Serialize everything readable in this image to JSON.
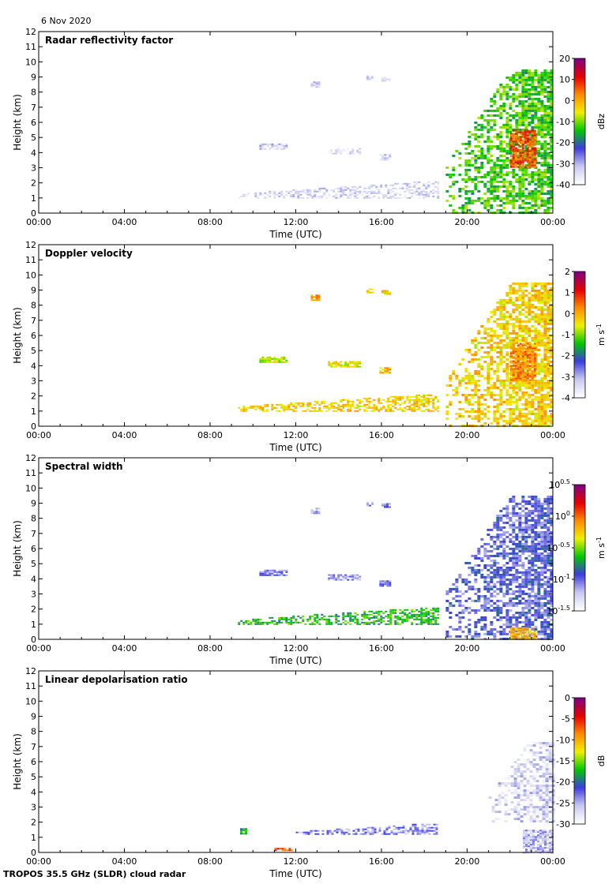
{
  "figure": {
    "date": "6 Nov 2020",
    "footer": "TROPOS 35.5 GHz (SLDR) cloud radar"
  },
  "chart_data": [
    {
      "type": "heatmap",
      "title": "Radar reflectivity factor",
      "xlabel": "Time (UTC)",
      "ylabel": "Height (km)",
      "xlim": [
        0,
        24
      ],
      "ylim": [
        0,
        12
      ],
      "xticks": [
        "00:00",
        "04:00",
        "08:00",
        "12:00",
        "16:00",
        "20:00",
        "00:00"
      ],
      "yticks": [
        0,
        1,
        2,
        3,
        4,
        5,
        6,
        7,
        8,
        9,
        10,
        11,
        12
      ],
      "colorbar": {
        "label": "dBz",
        "ticks": [
          "20",
          "10",
          "0",
          "-10",
          "-20",
          "-30",
          "-40"
        ],
        "scale": "white-blue-green-yellow-red-purple"
      },
      "features": [
        {
          "kind": "patch",
          "t0": 10.3,
          "t1": 11.6,
          "h0": 4.2,
          "h1": 4.6,
          "value": 0.12
        },
        {
          "kind": "patch",
          "t0": 12.7,
          "t1": 13.1,
          "h0": 8.3,
          "h1": 8.7,
          "value": 0.1
        },
        {
          "kind": "patch",
          "t0": 15.3,
          "t1": 15.6,
          "h0": 8.8,
          "h1": 9.1,
          "value": 0.08
        },
        {
          "kind": "patch",
          "t0": 16.0,
          "t1": 16.4,
          "h0": 8.7,
          "h1": 9.0,
          "value": 0.1
        },
        {
          "kind": "patch",
          "t0": 13.5,
          "t1": 15.0,
          "h0": 3.9,
          "h1": 4.3,
          "value": 0.06
        },
        {
          "kind": "patch",
          "t0": 15.9,
          "t1": 16.4,
          "h0": 3.5,
          "h1": 3.9,
          "value": 0.12
        },
        {
          "kind": "band",
          "t0": 9.3,
          "t1": 18.6,
          "h0": 1.0,
          "h1": 2.2,
          "value": 0.1
        },
        {
          "kind": "cloud",
          "t0": 19.0,
          "t1": 24.0,
          "h0": 0.0,
          "h1": 9.5,
          "value": 0.45
        },
        {
          "kind": "core",
          "t0": 22.0,
          "t1": 23.2,
          "h0": 3.0,
          "h1": 5.5,
          "value": 0.78
        }
      ]
    },
    {
      "type": "heatmap",
      "title": "Doppler velocity",
      "xlabel": "Time (UTC)",
      "ylabel": "Height (km)",
      "xlim": [
        0,
        24
      ],
      "ylim": [
        0,
        12
      ],
      "xticks": [
        "00:00",
        "04:00",
        "08:00",
        "12:00",
        "16:00",
        "20:00",
        "00:00"
      ],
      "yticks": [
        0,
        1,
        2,
        3,
        4,
        5,
        6,
        7,
        8,
        9,
        10,
        11,
        12
      ],
      "colorbar": {
        "label": "m s-1",
        "ticks": [
          "2",
          "1",
          "0",
          "-1",
          "-2",
          "-3",
          "-4"
        ],
        "scale": "white-blue-green-yellow-red-purple"
      },
      "features": [
        {
          "kind": "patch",
          "t0": 10.3,
          "t1": 11.6,
          "h0": 4.2,
          "h1": 4.6,
          "value": 0.55
        },
        {
          "kind": "patch",
          "t0": 12.7,
          "t1": 13.1,
          "h0": 8.3,
          "h1": 8.7,
          "value": 0.7
        },
        {
          "kind": "patch",
          "t0": 15.3,
          "t1": 15.6,
          "h0": 8.8,
          "h1": 9.1,
          "value": 0.6
        },
        {
          "kind": "patch",
          "t0": 16.0,
          "t1": 16.4,
          "h0": 8.7,
          "h1": 9.0,
          "value": 0.62
        },
        {
          "kind": "patch",
          "t0": 13.5,
          "t1": 15.0,
          "h0": 3.9,
          "h1": 4.3,
          "value": 0.58
        },
        {
          "kind": "patch",
          "t0": 15.9,
          "t1": 16.4,
          "h0": 3.5,
          "h1": 3.9,
          "value": 0.65
        },
        {
          "kind": "band",
          "t0": 9.3,
          "t1": 18.6,
          "h0": 1.0,
          "h1": 2.2,
          "value": 0.62
        },
        {
          "kind": "cloud",
          "t0": 19.0,
          "t1": 24.0,
          "h0": 0.0,
          "h1": 9.5,
          "value": 0.62
        },
        {
          "kind": "core",
          "t0": 22.0,
          "t1": 23.2,
          "h0": 3.0,
          "h1": 5.5,
          "value": 0.72
        }
      ]
    },
    {
      "type": "heatmap",
      "title": "Spectral width",
      "xlabel": "Time (UTC)",
      "ylabel": "Height (km)",
      "xlim": [
        0,
        24
      ],
      "ylim": [
        0,
        12
      ],
      "xticks": [
        "00:00",
        "04:00",
        "08:00",
        "12:00",
        "16:00",
        "20:00",
        "00:00"
      ],
      "yticks": [
        0,
        1,
        2,
        3,
        4,
        5,
        6,
        7,
        8,
        9,
        10,
        11,
        12
      ],
      "colorbar": {
        "label": "m s-1",
        "ticks": [
          "10^0.5",
          "10^0",
          "10^-0.5",
          "10^-1",
          "10^-1.5"
        ],
        "scale": "white-blue-green-yellow-red-purple"
      },
      "features": [
        {
          "kind": "patch",
          "t0": 10.3,
          "t1": 11.6,
          "h0": 4.2,
          "h1": 4.6,
          "value": 0.2
        },
        {
          "kind": "patch",
          "t0": 12.7,
          "t1": 13.1,
          "h0": 8.3,
          "h1": 8.7,
          "value": 0.2
        },
        {
          "kind": "patch",
          "t0": 15.3,
          "t1": 15.6,
          "h0": 8.8,
          "h1": 9.1,
          "value": 0.18
        },
        {
          "kind": "patch",
          "t0": 16.0,
          "t1": 16.4,
          "h0": 8.7,
          "h1": 9.0,
          "value": 0.2
        },
        {
          "kind": "patch",
          "t0": 13.5,
          "t1": 15.0,
          "h0": 3.9,
          "h1": 4.3,
          "value": 0.18
        },
        {
          "kind": "patch",
          "t0": 15.9,
          "t1": 16.4,
          "h0": 3.5,
          "h1": 3.9,
          "value": 0.22
        },
        {
          "kind": "band",
          "t0": 9.3,
          "t1": 18.6,
          "h0": 1.0,
          "h1": 2.2,
          "value": 0.42
        },
        {
          "kind": "cloud",
          "t0": 19.0,
          "t1": 24.0,
          "h0": 0.0,
          "h1": 9.5,
          "value": 0.25
        },
        {
          "kind": "core",
          "t0": 22.0,
          "t1": 23.2,
          "h0": 0.0,
          "h1": 0.8,
          "value": 0.65
        }
      ]
    },
    {
      "type": "heatmap",
      "title": "Linear depolarisation ratio",
      "xlabel": "Time (UTC)",
      "ylabel": "Height (km)",
      "xlim": [
        0,
        24
      ],
      "ylim": [
        0,
        12
      ],
      "xticks": [
        "00:00",
        "04:00",
        "08:00",
        "12:00",
        "16:00",
        "20:00",
        "00:00"
      ],
      "yticks": [
        0,
        1,
        2,
        3,
        4,
        5,
        6,
        7,
        8,
        9,
        10,
        11,
        12
      ],
      "colorbar": {
        "label": "dB",
        "ticks": [
          "0",
          "-5",
          "-10",
          "-15",
          "-20",
          "-25",
          "-30"
        ],
        "scale": "white-blue-green-yellow-red-purple"
      },
      "features": [
        {
          "kind": "patch",
          "t0": 9.4,
          "t1": 9.7,
          "h0": 1.2,
          "h1": 1.6,
          "value": 0.4
        },
        {
          "kind": "band",
          "t0": 12.0,
          "t1": 18.6,
          "h0": 1.2,
          "h1": 2.0,
          "value": 0.2
        },
        {
          "kind": "patch",
          "t0": 11.0,
          "t1": 11.8,
          "h0": 0.1,
          "h1": 0.3,
          "value": 0.78
        },
        {
          "kind": "cloud",
          "t0": 21.0,
          "t1": 24.0,
          "h0": 2.0,
          "h1": 7.3,
          "value": 0.1
        },
        {
          "kind": "core",
          "t0": 22.6,
          "t1": 24.0,
          "h0": 0.0,
          "h1": 1.5,
          "value": 0.15
        }
      ]
    }
  ]
}
